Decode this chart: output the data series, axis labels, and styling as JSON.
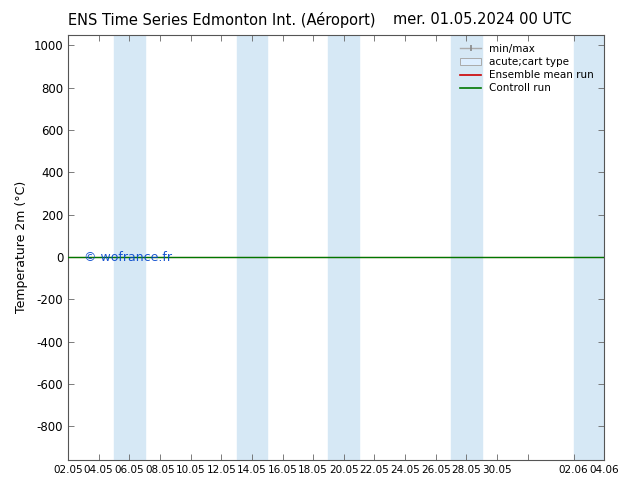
{
  "title_left": "ENS Time Series Edmonton Int. (Aéroport)",
  "title_right": "mer. 01.05.2024 00 UTC",
  "ylabel": "Temperature 2m (°C)",
  "watermark": "© wofrance.fr",
  "ylim_bottom": 1050,
  "ylim_top": -960,
  "yticks": [
    -800,
    -600,
    -400,
    -200,
    0,
    200,
    400,
    600,
    800,
    1000
  ],
  "xtick_labels": [
    "02.05",
    "04.05",
    "06.05",
    "08.05",
    "10.05",
    "12.05",
    "14.05",
    "16.05",
    "18.05",
    "20.05",
    "22.05",
    "24.05",
    "26.05",
    "28.05",
    "30.05",
    "",
    "02.06",
    "04.06"
  ],
  "x_positions": [
    0,
    2,
    4,
    6,
    8,
    10,
    12,
    14,
    16,
    18,
    20,
    22,
    24,
    26,
    28,
    30,
    33,
    35
  ],
  "xlim": [
    0,
    35
  ],
  "band_pairs": [
    [
      3,
      5
    ],
    [
      11,
      13
    ],
    [
      17,
      19
    ],
    [
      25,
      27
    ],
    [
      33,
      35
    ]
  ],
  "band_color": "#d6e8f5",
  "green_line_y": 0,
  "red_line_y": 0,
  "legend_entries": [
    "min/max",
    "acute;cart type",
    "Ensemble mean run",
    "Controll run"
  ],
  "legend_colors": [
    "#aaaaaa",
    "#cccccc",
    "#cc0000",
    "#007700"
  ],
  "background_color": "#ffffff",
  "title_fontsize": 10.5,
  "axis_fontsize": 9,
  "tick_fontsize": 8.5,
  "watermark_color": "#0044cc"
}
